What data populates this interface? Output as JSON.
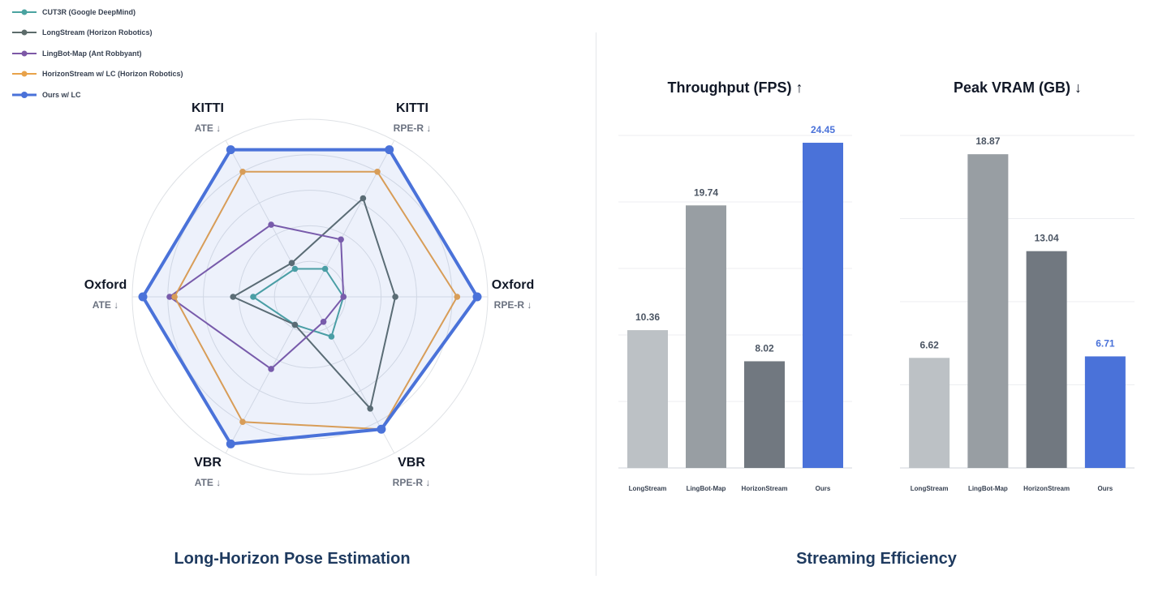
{
  "legend": [
    {
      "label": "CUT3R (Google DeepMind)",
      "color": "#4aa3a0"
    },
    {
      "label": "LongStream (Horizon Robotics)",
      "color": "#5c6b6a"
    },
    {
      "label": "LingBot-Map (Ant Robbyant)",
      "color": "#7d58a6"
    },
    {
      "label": "HorizonStream w/ LC (Horizon Robotics)",
      "color": "#e8a24a"
    },
    {
      "label": "Ours w/ LC",
      "color": "#4a72d9"
    }
  ],
  "footer": {
    "left": "Long-Horizon Pose Estimation",
    "right": "Streaming Efficiency"
  },
  "chart_data": [
    {
      "type": "radar",
      "axes": [
        {
          "name": "KITTI",
          "metric": "ATE ↓"
        },
        {
          "name": "KITTI",
          "metric": "RPE-R ↓"
        },
        {
          "name": "Oxford",
          "metric": "RPE-R ↓"
        },
        {
          "name": "VBR",
          "metric": "RPE-R ↓"
        },
        {
          "name": "VBR",
          "metric": "ATE ↓"
        },
        {
          "name": "Oxford",
          "metric": "ATE ↓"
        }
      ],
      "range": [
        0,
        1
      ],
      "gridlines": 5,
      "series": [
        {
          "name": "CUT3R (Google DeepMind)",
          "values": [
            0.19,
            0.19,
            0.2,
            0.27,
            0.19,
            0.34
          ],
          "color": "#4aa3a0"
        },
        {
          "name": "LongStream (Horizon Robotics)",
          "values": [
            0.23,
            0.67,
            0.51,
            0.76,
            0.19,
            0.46
          ],
          "color": "#5c6b6a"
        },
        {
          "name": "LingBot-Map (Ant Robbyant)",
          "values": [
            0.49,
            0.39,
            0.2,
            0.17,
            0.49,
            0.84
          ],
          "color": "#7d58a6"
        },
        {
          "name": "HorizonStream w/ LC (Horizon Robotics)",
          "values": [
            0.85,
            0.85,
            0.88,
            0.9,
            0.85,
            0.81
          ],
          "color": "#e8a24a"
        },
        {
          "name": "Ours w/ LC",
          "values": [
            1.0,
            1.0,
            1.0,
            0.9,
            1.0,
            1.0
          ],
          "color": "#4a72d9"
        }
      ]
    },
    {
      "type": "bar",
      "title": "Throughput (FPS) ↑",
      "categories": [
        "LongStream",
        "LingBot-Map",
        "HorizonStream",
        "Ours"
      ],
      "values": [
        10.36,
        19.74,
        8.02,
        24.45
      ],
      "value_labels": [
        "10.36",
        "19.74",
        "8.02",
        "24.45"
      ],
      "colors": [
        "#bcc1c5",
        "#989ea3",
        "#717880",
        "#4a72d9"
      ],
      "label_colors": [
        "#4b5563",
        "#4b5563",
        "#4b5563",
        "#4a72d9"
      ],
      "ylim": [
        0,
        25
      ],
      "gridlines": [
        0,
        5,
        10,
        15,
        20,
        25
      ],
      "grid": true
    },
    {
      "type": "bar",
      "title": "Peak VRAM (GB) ↓",
      "categories": [
        "LongStream",
        "LingBot-Map",
        "HorizonStream",
        "Ours"
      ],
      "values": [
        6.62,
        18.87,
        13.04,
        6.71
      ],
      "value_labels": [
        "6.62",
        "18.87",
        "13.04",
        "6.71"
      ],
      "colors": [
        "#bcc1c5",
        "#989ea3",
        "#717880",
        "#4a72d9"
      ],
      "label_colors": [
        "#4b5563",
        "#4b5563",
        "#4b5563",
        "#4a72d9"
      ],
      "ylim": [
        0,
        20
      ],
      "gridlines": [
        0,
        5,
        10,
        15,
        20
      ],
      "grid": true
    }
  ]
}
